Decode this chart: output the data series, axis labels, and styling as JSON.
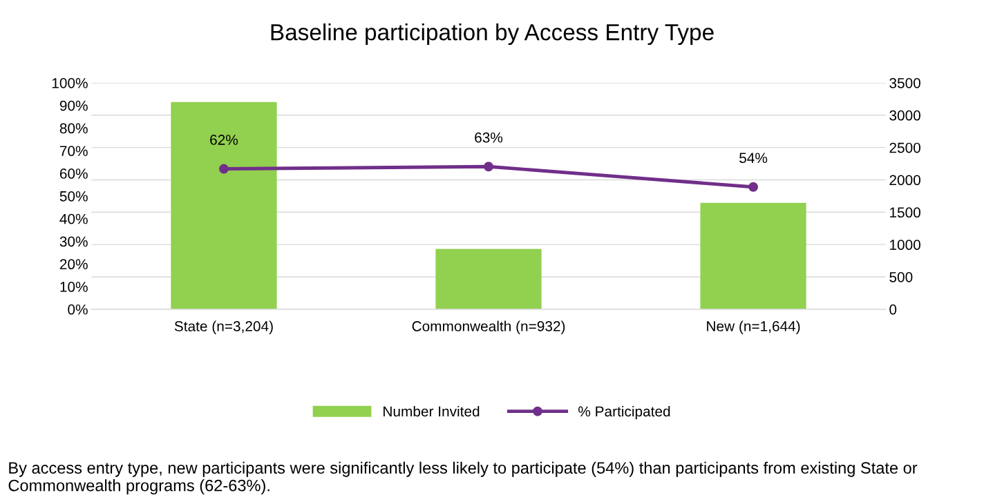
{
  "chart_data": {
    "type": "bar",
    "title": "Baseline participation by Access Entry Type",
    "categories": [
      "State (n=3,204)",
      "Commonwealth (n=932)",
      "New (n=1,644)"
    ],
    "series": [
      {
        "name": "Number Invited",
        "axis": "y2",
        "color": "#92d050",
        "values": [
          3204,
          932,
          1644
        ]
      },
      {
        "name": "% Participated",
        "type": "line",
        "axis": "y",
        "color": "#702f8a",
        "marker": "circle",
        "values": [
          62,
          63,
          54
        ],
        "value_labels": [
          "62%",
          "63%",
          "54%"
        ]
      }
    ],
    "ylim": [
      0,
      100
    ],
    "yticks": [
      {
        "value": 0,
        "label": "0%"
      },
      {
        "value": 10,
        "label": "10%"
      },
      {
        "value": 20,
        "label": "20%"
      },
      {
        "value": 30,
        "label": "30%"
      },
      {
        "value": 40,
        "label": "40%"
      },
      {
        "value": 50,
        "label": "50%"
      },
      {
        "value": 60,
        "label": "60%"
      },
      {
        "value": 70,
        "label": "70%"
      },
      {
        "value": 80,
        "label": "80%"
      },
      {
        "value": 90,
        "label": "90%"
      },
      {
        "value": 100,
        "label": "100%"
      }
    ],
    "y2lim": [
      0,
      3500
    ],
    "y2ticks": [
      0,
      500,
      1000,
      1500,
      2000,
      2500,
      3000,
      3500
    ],
    "grid": true,
    "legend": "bottom",
    "annotations": [
      "By access entry type, new participants were significantly less likely to participate (54%) than participants from existing State or Commonwealth programs (62-63%)."
    ]
  }
}
